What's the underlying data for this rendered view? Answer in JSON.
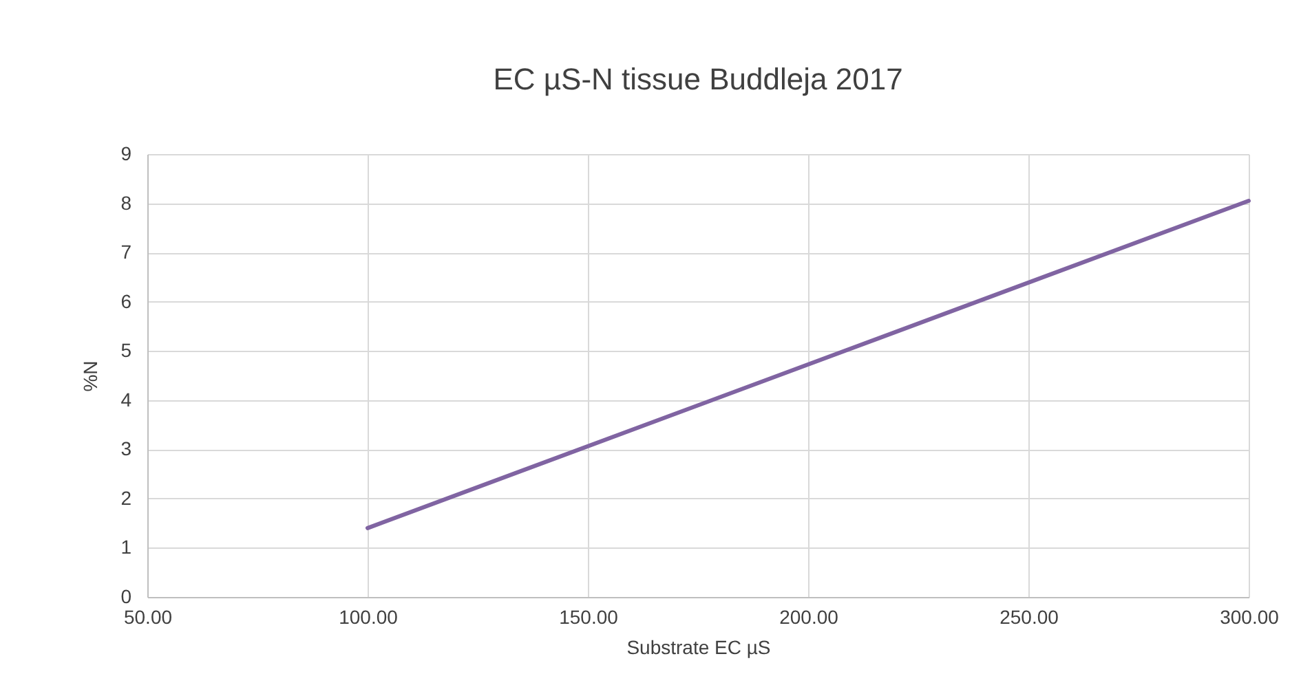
{
  "chart_data": {
    "type": "line",
    "title": "EC µS-N tissue  Buddleja 2017",
    "xlabel": "Substrate EC µS",
    "ylabel": "%N",
    "x": [
      100,
      300
    ],
    "series": [
      {
        "color": "#8064a2",
        "values": [
          1.4,
          8.05
        ]
      }
    ],
    "xlim": [
      50,
      300
    ],
    "xticks": [
      {
        "value": 50,
        "label": "50.00"
      },
      {
        "value": 100,
        "label": "100.00"
      },
      {
        "value": 150,
        "label": "150.00"
      },
      {
        "value": 200,
        "label": "200.00"
      },
      {
        "value": 250,
        "label": "250.00"
      },
      {
        "value": 300,
        "label": "300.00"
      }
    ],
    "ylim": [
      0,
      9
    ],
    "yticks": [
      0,
      1,
      2,
      3,
      4,
      5,
      6,
      7,
      8,
      9
    ],
    "grid": true,
    "marker": "none",
    "line_style": "solid"
  }
}
